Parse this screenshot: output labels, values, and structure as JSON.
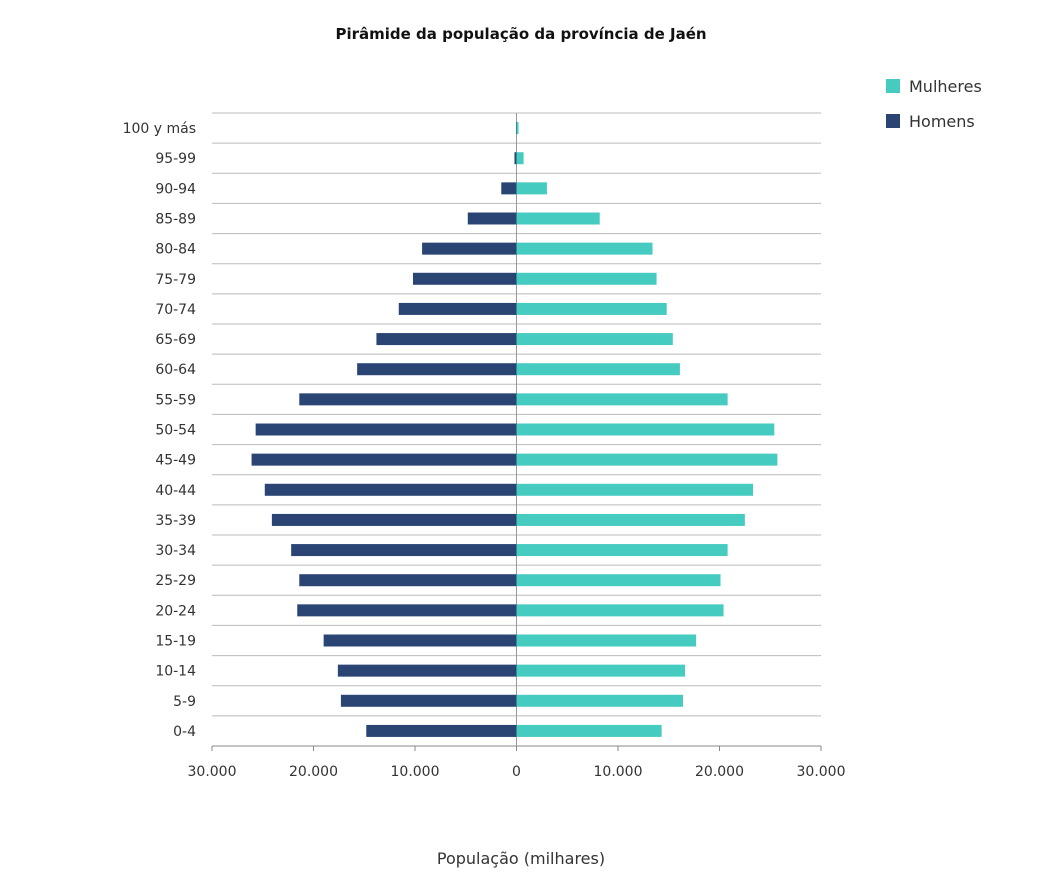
{
  "chart_data": {
    "type": "bar",
    "orientation": "horizontal-pyramid",
    "title": "Pirâmide da população da província de Jaén",
    "xlabel": "População (milhares)",
    "ylabel": "",
    "xlim": [
      -30000,
      30000
    ],
    "xticks": [
      -30000,
      -20000,
      -10000,
      0,
      10000,
      20000,
      30000
    ],
    "xtick_labels": [
      "30.000",
      "20.000",
      "10.000",
      "0",
      "10.000",
      "20.000",
      "30.000"
    ],
    "grid": true,
    "legend_position": "top-right",
    "categories": [
      "100 y más",
      "95-99",
      "90-94",
      "85-89",
      "80-84",
      "75-79",
      "70-74",
      "65-69",
      "60-64",
      "55-59",
      "50-54",
      "45-49",
      "40-44",
      "35-39",
      "30-34",
      "25-29",
      "20-24",
      "15-19",
      "10-14",
      "5-9",
      "0-4"
    ],
    "series": [
      {
        "name": "Mulheres",
        "color": "#46cbc0",
        "side": "right",
        "values": [
          200,
          700,
          3000,
          8200,
          13400,
          13800,
          14800,
          15400,
          16100,
          20800,
          25400,
          25700,
          23300,
          22500,
          20800,
          20100,
          20400,
          17700,
          16600,
          16400,
          14300
        ]
      },
      {
        "name": "Homens",
        "color": "#2a4474",
        "side": "left",
        "values": [
          50,
          200,
          1500,
          4800,
          9300,
          10200,
          11600,
          13800,
          15700,
          21400,
          25700,
          26100,
          24800,
          24100,
          22200,
          21400,
          21600,
          19000,
          17600,
          17300,
          14800
        ]
      }
    ]
  }
}
